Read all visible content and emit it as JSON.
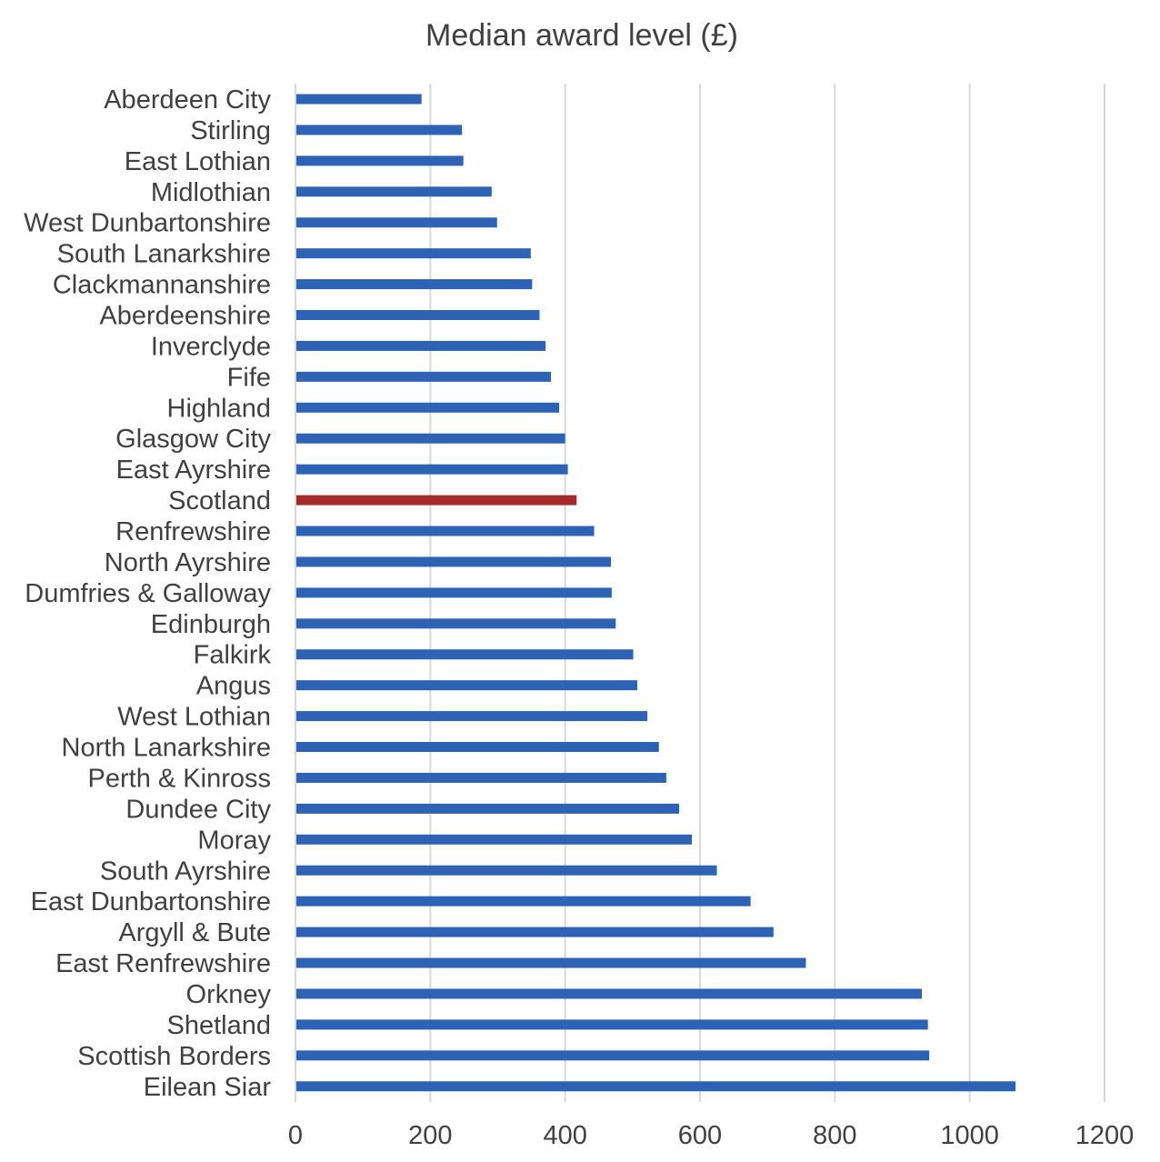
{
  "chart_data": {
    "type": "bar",
    "orientation": "horizontal",
    "title": "Median award level (£)",
    "xlabel": "",
    "ylabel": "",
    "xlim": [
      0,
      1200
    ],
    "xticks": [
      "0",
      "200",
      "400",
      "600",
      "800",
      "1000",
      "1200"
    ],
    "grid": "vertical",
    "legend": "none",
    "colors": {
      "default": "#2e62b4",
      "highlight": "#a52a2a",
      "grid": "#d9d9d9",
      "text": "#404040"
    },
    "highlight": "Scotland",
    "categories": [
      "Aberdeen City",
      "Stirling",
      "East Lothian",
      "Midlothian",
      "West Dunbartonshire",
      "South Lanarkshire",
      "Clackmannanshire",
      "Aberdeenshire",
      "Inverclyde",
      "Fife",
      "Highland",
      "Glasgow City",
      "East Ayrshire",
      "Scotland",
      "Renfrewshire",
      "North Ayrshire",
      "Dumfries & Galloway",
      "Edinburgh",
      "Falkirk",
      "Angus",
      "West Lothian",
      "North Lanarkshire",
      "Perth & Kinross",
      "Dundee City",
      "Moray",
      "South Ayrshire",
      "East Dunbartonshire",
      "Argyll & Bute",
      "East Renfrewshire",
      "Orkney",
      "Shetland",
      "Scottish Borders",
      "Eilean Siar"
    ],
    "values": [
      187,
      247,
      249,
      291,
      299,
      349,
      351,
      362,
      371,
      379,
      391,
      400,
      404,
      417,
      443,
      468,
      469,
      475,
      501,
      507,
      522,
      539,
      550,
      569,
      588,
      625,
      675,
      709,
      757,
      929,
      938,
      940,
      1068
    ]
  }
}
